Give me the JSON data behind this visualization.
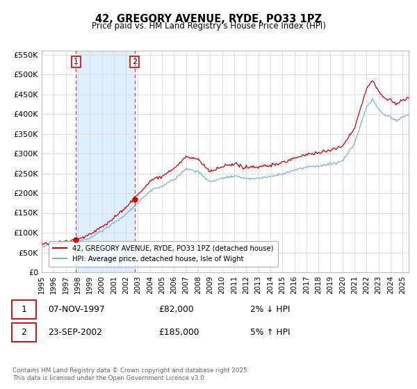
{
  "title": "42, GREGORY AVENUE, RYDE, PO33 1PZ",
  "subtitle": "Price paid vs. HM Land Registry's House Price Index (HPI)",
  "legend_label_red": "42, GREGORY AVENUE, RYDE, PO33 1PZ (detached house)",
  "legend_label_blue": "HPI: Average price, detached house, Isle of Wight",
  "transaction1_label": "1",
  "transaction1_date": "07-NOV-1997",
  "transaction1_price": "£82,000",
  "transaction1_hpi": "2% ↓ HPI",
  "transaction2_label": "2",
  "transaction2_date": "23-SEP-2002",
  "transaction2_price": "£185,000",
  "transaction2_hpi": "5% ↑ HPI",
  "footer": "Contains HM Land Registry data © Crown copyright and database right 2025.\nThis data is licensed under the Open Government Licence v3.0.",
  "ylim": [
    0,
    560000
  ],
  "yticks": [
    0,
    50000,
    100000,
    150000,
    200000,
    250000,
    300000,
    350000,
    400000,
    450000,
    500000,
    550000
  ],
  "background_color": "#ffffff",
  "grid_color": "#dddddd",
  "red_color": "#cc0000",
  "blue_color": "#7ab0d4",
  "shade_color": "#ddeeff",
  "dashed_color": "#cc4444",
  "sale1_year": 1997.85,
  "sale1_price": 82000,
  "sale2_year": 2002.72,
  "sale2_price": 185000,
  "xmin": 1995,
  "xmax": 2025.5
}
